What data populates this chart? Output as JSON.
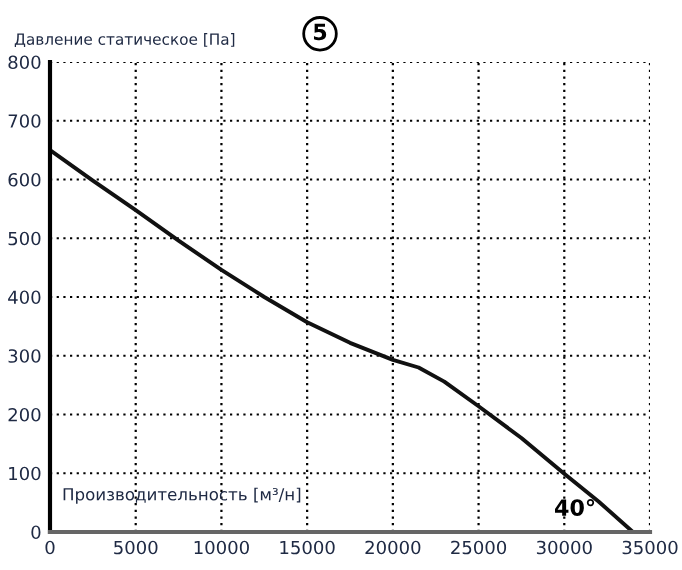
{
  "chart_data": {
    "type": "line",
    "ylabel": "Давление статическое [Па]",
    "xlabel": "Производительность [м³/н]",
    "annotations": [
      "5",
      "40°"
    ],
    "series": [
      {
        "color": "#111111",
        "x": [
          0,
          2500,
          5000,
          7500,
          10000,
          12500,
          15000,
          17500,
          20000,
          21500,
          23000,
          25000,
          27500,
          30000,
          32000,
          34000
        ],
        "values": [
          650,
          598,
          548,
          496,
          446,
          400,
          357,
          322,
          293,
          280,
          256,
          214,
          160,
          99,
          52,
          0
        ]
      }
    ],
    "xlim": [
      0,
      35000
    ],
    "ylim": [
      0,
      800
    ],
    "xticks": [
      0,
      5000,
      10000,
      15000,
      20000,
      25000,
      30000,
      35000
    ],
    "yticks": [
      0,
      100,
      200,
      300,
      400,
      500,
      600,
      700,
      800
    ],
    "grid": true,
    "legend": false,
    "marker": "none",
    "line_style": "solid"
  }
}
